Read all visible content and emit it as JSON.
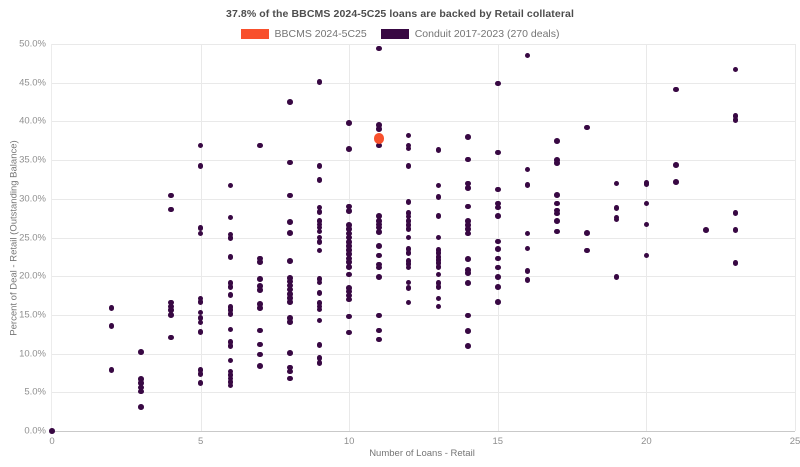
{
  "title": "37.8% of the BBCMS 2024-5C25 loans are backed by Retail collateral",
  "legend": [
    {
      "label": "BBCMS 2024-5C25",
      "color": "#f8502c"
    },
    {
      "label": "Conduit 2017-2023 (270 deals)",
      "color": "#380843"
    }
  ],
  "chart_data": {
    "type": "scatter",
    "title": "37.8% of the BBCMS 2024-5C25 loans are backed by Retail collateral",
    "xlabel": "Number of Loans - Retail",
    "ylabel": "Percent of Deal - Retail (Outstanding Balance)",
    "xlim": [
      0,
      25
    ],
    "ylim": [
      0,
      50
    ],
    "xtick_values": [
      0,
      5,
      10,
      15,
      20,
      25
    ],
    "xtick_labels": [
      "0",
      "5",
      "10",
      "15",
      "20",
      "25"
    ],
    "ytick_values": [
      0,
      5,
      10,
      15,
      20,
      25,
      30,
      35,
      40,
      45,
      50
    ],
    "ytick_labels": [
      "0.0%",
      "5.0%",
      "10.0%",
      "15.0%",
      "20.0%",
      "25.0%",
      "30.0%",
      "35.0%",
      "40.0%",
      "45.0%",
      "50.0%"
    ],
    "grid": true,
    "legend_position": "top-center",
    "series": [
      {
        "name": "BBCMS 2024-5C25",
        "color": "#f8502c",
        "marker_radius": 5.3,
        "marker_name": "bbcms-data-point",
        "points": [
          [
            11,
            37.8
          ]
        ]
      },
      {
        "name": "Conduit 2017-2023 (270 deals)",
        "color": "#380843",
        "marker_radius": 2.8,
        "marker_name": "conduit-data-point",
        "points": [
          [
            0,
            0.0
          ],
          [
            2,
            15.9
          ],
          [
            2,
            13.6
          ],
          [
            2,
            7.9
          ],
          [
            3,
            10.2
          ],
          [
            3,
            6.7
          ],
          [
            3,
            6.2
          ],
          [
            3,
            5.6
          ],
          [
            3,
            5.1
          ],
          [
            3,
            3.1
          ],
          [
            4,
            30.4
          ],
          [
            4,
            28.6
          ],
          [
            4,
            16.6
          ],
          [
            4,
            16.1
          ],
          [
            4,
            15.6
          ],
          [
            4,
            15.0
          ],
          [
            4,
            12.1
          ],
          [
            5,
            36.9
          ],
          [
            5,
            34.2
          ],
          [
            5,
            26.2
          ],
          [
            5,
            25.5
          ],
          [
            5,
            17.1
          ],
          [
            5,
            16.7
          ],
          [
            5,
            15.3
          ],
          [
            5,
            14.6
          ],
          [
            5,
            14.0
          ],
          [
            5,
            12.8
          ],
          [
            5,
            7.9
          ],
          [
            5,
            7.4
          ],
          [
            5,
            6.2
          ],
          [
            6,
            31.7
          ],
          [
            6,
            27.6
          ],
          [
            6,
            25.4
          ],
          [
            6,
            24.9
          ],
          [
            6,
            22.5
          ],
          [
            6,
            19.1
          ],
          [
            6,
            18.6
          ],
          [
            6,
            17.6
          ],
          [
            6,
            16.0
          ],
          [
            6,
            15.6
          ],
          [
            6,
            15.1
          ],
          [
            6,
            13.1
          ],
          [
            6,
            11.5
          ],
          [
            6,
            11.0
          ],
          [
            6,
            9.1
          ],
          [
            6,
            7.7
          ],
          [
            6,
            7.2
          ],
          [
            6,
            6.8
          ],
          [
            6,
            6.3
          ],
          [
            6,
            5.9
          ],
          [
            7,
            36.9
          ],
          [
            7,
            22.3
          ],
          [
            7,
            21.8
          ],
          [
            7,
            19.6
          ],
          [
            7,
            18.7
          ],
          [
            7,
            18.2
          ],
          [
            7,
            16.4
          ],
          [
            7,
            15.9
          ],
          [
            7,
            13.0
          ],
          [
            7,
            11.2
          ],
          [
            7,
            9.9
          ],
          [
            7,
            8.4
          ],
          [
            8,
            42.5
          ],
          [
            8,
            34.7
          ],
          [
            8,
            30.4
          ],
          [
            8,
            27.0
          ],
          [
            8,
            25.6
          ],
          [
            8,
            22.0
          ],
          [
            8,
            19.8
          ],
          [
            8,
            19.3
          ],
          [
            8,
            18.8
          ],
          [
            8,
            18.3
          ],
          [
            8,
            17.7
          ],
          [
            8,
            17.2
          ],
          [
            8,
            16.7
          ],
          [
            8,
            14.6
          ],
          [
            8,
            14.1
          ],
          [
            8,
            10.1
          ],
          [
            8,
            8.2
          ],
          [
            8,
            7.7
          ],
          [
            8,
            6.8
          ],
          [
            9,
            45.1
          ],
          [
            9,
            34.2
          ],
          [
            9,
            32.4
          ],
          [
            9,
            28.9
          ],
          [
            9,
            28.3
          ],
          [
            9,
            27.1
          ],
          [
            9,
            26.7
          ],
          [
            9,
            26.3
          ],
          [
            9,
            25.8
          ],
          [
            9,
            25.0
          ],
          [
            9,
            24.4
          ],
          [
            9,
            23.3
          ],
          [
            9,
            19.6
          ],
          [
            9,
            19.2
          ],
          [
            9,
            17.8
          ],
          [
            9,
            16.5
          ],
          [
            9,
            16.1
          ],
          [
            9,
            15.7
          ],
          [
            9,
            14.3
          ],
          [
            9,
            11.1
          ],
          [
            9,
            9.4
          ],
          [
            9,
            8.8
          ],
          [
            10,
            39.8
          ],
          [
            10,
            36.4
          ],
          [
            10,
            29.0
          ],
          [
            10,
            28.4
          ],
          [
            10,
            26.6
          ],
          [
            10,
            26.1
          ],
          [
            10,
            25.5
          ],
          [
            10,
            25.0
          ],
          [
            10,
            24.4
          ],
          [
            10,
            23.9
          ],
          [
            10,
            23.4
          ],
          [
            10,
            22.9
          ],
          [
            10,
            22.3
          ],
          [
            10,
            21.8
          ],
          [
            10,
            21.2
          ],
          [
            10,
            20.2
          ],
          [
            10,
            18.5
          ],
          [
            10,
            18.0
          ],
          [
            10,
            17.5
          ],
          [
            10,
            17.0
          ],
          [
            10,
            14.8
          ],
          [
            10,
            12.7
          ],
          [
            11,
            49.4
          ],
          [
            11,
            39.5
          ],
          [
            11,
            39.0
          ],
          [
            11,
            36.9
          ],
          [
            11,
            27.8
          ],
          [
            11,
            27.1
          ],
          [
            11,
            26.7
          ],
          [
            11,
            26.3
          ],
          [
            11,
            25.7
          ],
          [
            11,
            23.9
          ],
          [
            11,
            22.7
          ],
          [
            11,
            21.5
          ],
          [
            11,
            21.1
          ],
          [
            11,
            19.9
          ],
          [
            11,
            14.9
          ],
          [
            11,
            13.0
          ],
          [
            11,
            11.8
          ],
          [
            12,
            38.2
          ],
          [
            12,
            36.9
          ],
          [
            12,
            36.5
          ],
          [
            12,
            34.2
          ],
          [
            12,
            29.6
          ],
          [
            12,
            28.2
          ],
          [
            12,
            27.7
          ],
          [
            12,
            27.1
          ],
          [
            12,
            26.6
          ],
          [
            12,
            26.1
          ],
          [
            12,
            25.0
          ],
          [
            12,
            23.5
          ],
          [
            12,
            23.0
          ],
          [
            12,
            22.0
          ],
          [
            12,
            21.6
          ],
          [
            12,
            21.1
          ],
          [
            12,
            19.2
          ],
          [
            12,
            18.5
          ],
          [
            12,
            16.6
          ],
          [
            13,
            36.3
          ],
          [
            13,
            31.7
          ],
          [
            13,
            30.2
          ],
          [
            13,
            27.8
          ],
          [
            13,
            25.0
          ],
          [
            13,
            23.4
          ],
          [
            13,
            23.0
          ],
          [
            13,
            22.5
          ],
          [
            13,
            22.1
          ],
          [
            13,
            21.7
          ],
          [
            13,
            21.2
          ],
          [
            13,
            20.2
          ],
          [
            13,
            19.1
          ],
          [
            13,
            18.6
          ],
          [
            13,
            17.1
          ],
          [
            13,
            16.1
          ],
          [
            14,
            38.0
          ],
          [
            14,
            35.1
          ],
          [
            14,
            32.0
          ],
          [
            14,
            31.4
          ],
          [
            14,
            29.0
          ],
          [
            14,
            27.1
          ],
          [
            14,
            26.6
          ],
          [
            14,
            26.1
          ],
          [
            14,
            25.5
          ],
          [
            14,
            22.2
          ],
          [
            14,
            20.8
          ],
          [
            14,
            20.4
          ],
          [
            14,
            19.1
          ],
          [
            14,
            14.9
          ],
          [
            14,
            12.9
          ],
          [
            14,
            11.0
          ],
          [
            15,
            44.9
          ],
          [
            15,
            36.0
          ],
          [
            15,
            31.2
          ],
          [
            15,
            29.4
          ],
          [
            15,
            28.9
          ],
          [
            15,
            27.8
          ],
          [
            15,
            24.5
          ],
          [
            15,
            23.5
          ],
          [
            15,
            22.3
          ],
          [
            15,
            21.1
          ],
          [
            15,
            19.9
          ],
          [
            15,
            18.6
          ],
          [
            15,
            16.7
          ],
          [
            16,
            48.5
          ],
          [
            16,
            33.8
          ],
          [
            16,
            31.8
          ],
          [
            16,
            25.5
          ],
          [
            16,
            23.6
          ],
          [
            16,
            20.7
          ],
          [
            16,
            19.5
          ],
          [
            17,
            37.5
          ],
          [
            17,
            35.0
          ],
          [
            17,
            34.6
          ],
          [
            17,
            30.5
          ],
          [
            17,
            29.4
          ],
          [
            17,
            28.5
          ],
          [
            17,
            28.1
          ],
          [
            17,
            27.1
          ],
          [
            17,
            25.8
          ],
          [
            18,
            39.2
          ],
          [
            18,
            25.6
          ],
          [
            18,
            23.3
          ],
          [
            19,
            32.0
          ],
          [
            19,
            28.8
          ],
          [
            19,
            27.6
          ],
          [
            19,
            27.3
          ],
          [
            19,
            19.9
          ],
          [
            20,
            32.1
          ],
          [
            20,
            31.9
          ],
          [
            20,
            29.4
          ],
          [
            20,
            26.7
          ],
          [
            20,
            22.7
          ],
          [
            21,
            44.1
          ],
          [
            21,
            34.4
          ],
          [
            21,
            32.2
          ],
          [
            22,
            26.0
          ],
          [
            23,
            46.7
          ],
          [
            23,
            40.7
          ],
          [
            23,
            40.2
          ],
          [
            23,
            28.2
          ],
          [
            23,
            26.0
          ],
          [
            23,
            21.7
          ]
        ]
      }
    ]
  }
}
